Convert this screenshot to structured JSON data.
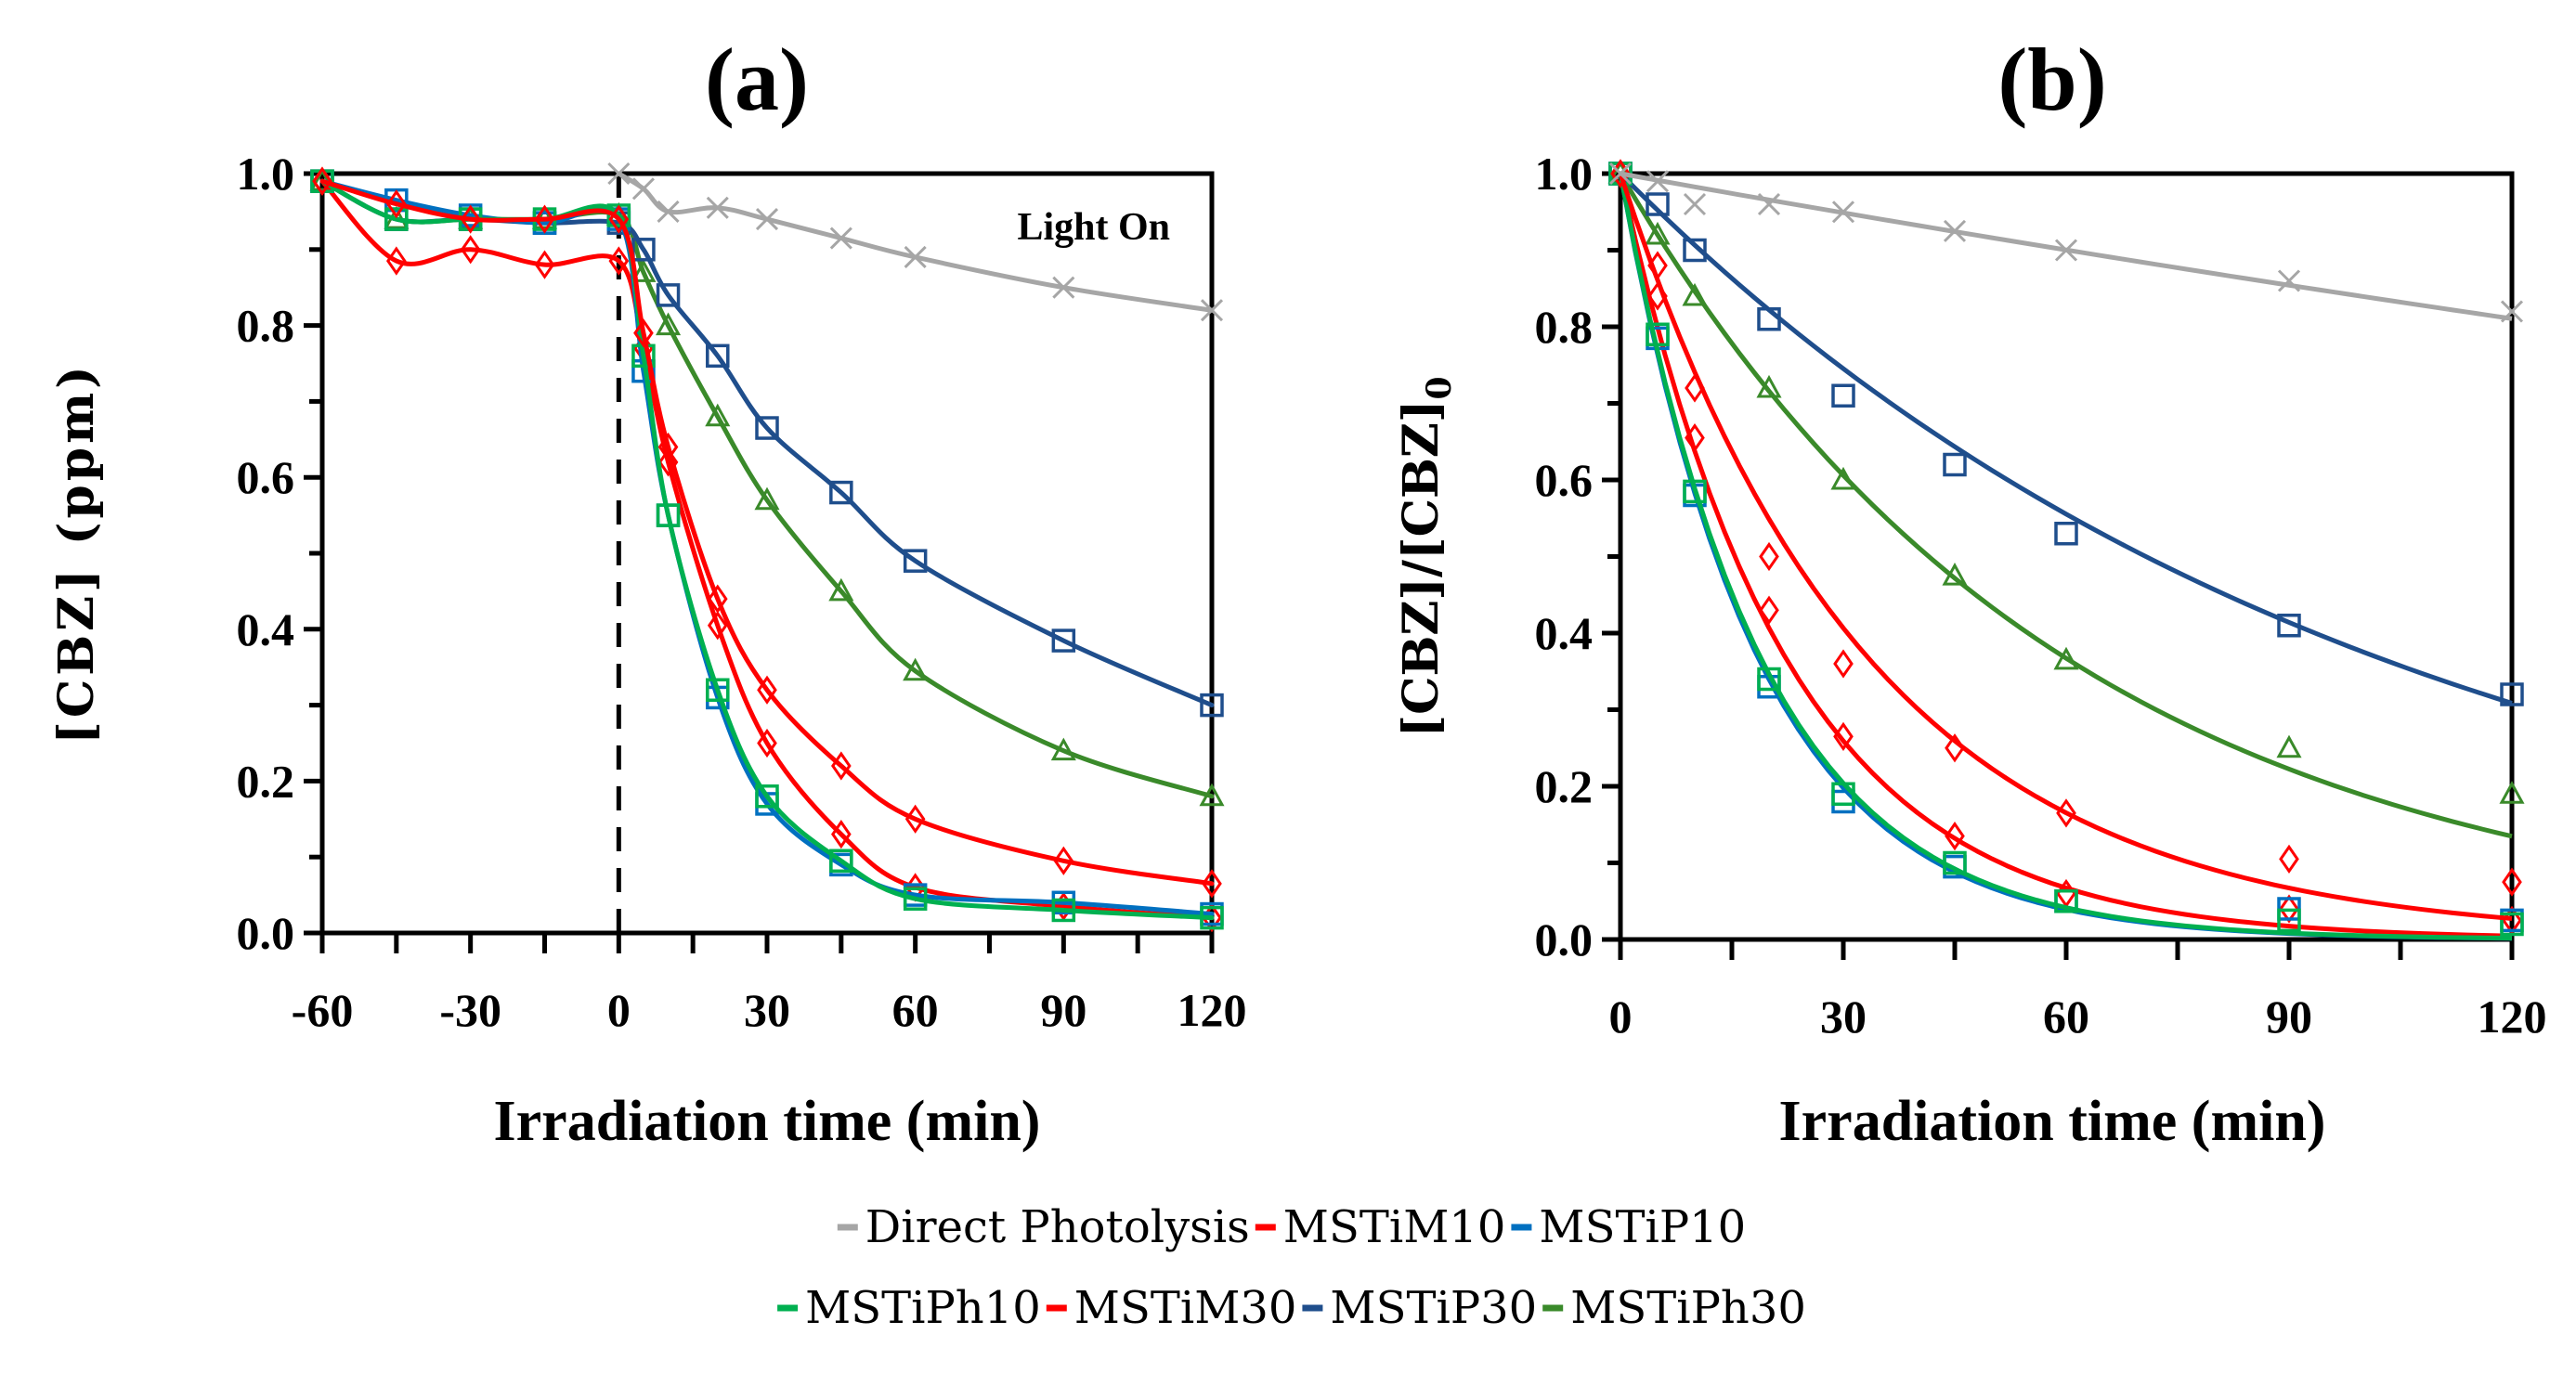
{
  "chart_data": [
    {
      "panel": "a",
      "type": "line",
      "title": "(a)",
      "xlabel": "Irradiation time (min)",
      "ylabel": "[CBZ] (ppm)",
      "xlim": [
        -60,
        120
      ],
      "ylim": [
        0,
        1.0
      ],
      "xticks": [
        -60,
        -30,
        0,
        30,
        60,
        90,
        120
      ],
      "xtick_labels": [
        "-60",
        "-30",
        "0",
        "30",
        "60",
        "90",
        "120"
      ],
      "yticks": [
        0,
        0.2,
        0.4,
        0.6,
        0.8,
        1.0
      ],
      "ytick_labels": [
        "0.0",
        "0.2",
        "0.4",
        "0.6",
        "0.8",
        "1.0"
      ],
      "annotation": "Light On",
      "vline_x": 0,
      "grid": false,
      "series": [
        {
          "name": "Direct Photolysis",
          "color": "#a6a6a6",
          "marker": "x",
          "x": [
            0,
            5,
            10,
            20,
            30,
            45,
            60,
            90,
            120
          ],
          "y": [
            1.0,
            0.98,
            0.95,
            0.955,
            0.94,
            0.915,
            0.89,
            0.85,
            0.82
          ]
        },
        {
          "name": "MSTiM10",
          "color": "#ff0000",
          "marker": "diamond",
          "x": [
            -60,
            -45,
            -30,
            -15,
            0,
            5,
            10,
            20,
            30,
            45,
            60,
            90,
            120
          ],
          "y": [
            0.99,
            0.96,
            0.94,
            0.94,
            0.94,
            0.79,
            0.64,
            0.44,
            0.32,
            0.22,
            0.15,
            0.095,
            0.065
          ]
        },
        {
          "name": "MSTiP10",
          "color": "#0070c0",
          "marker": "square",
          "x": [
            -60,
            -45,
            -30,
            -15,
            0,
            5,
            10,
            20,
            30,
            45,
            60,
            90,
            120
          ],
          "y": [
            0.99,
            0.965,
            0.945,
            0.935,
            0.94,
            0.74,
            0.55,
            0.31,
            0.17,
            0.09,
            0.05,
            0.04,
            0.025
          ]
        },
        {
          "name": "MSTiPh10",
          "color": "#00b050",
          "marker": "square",
          "x": [
            -60,
            -45,
            -30,
            -15,
            0,
            5,
            10,
            20,
            30,
            45,
            60,
            90,
            120
          ],
          "y": [
            0.99,
            0.94,
            0.94,
            0.94,
            0.945,
            0.76,
            0.55,
            0.32,
            0.18,
            0.095,
            0.045,
            0.03,
            0.02
          ]
        },
        {
          "name": "MSTiM30",
          "color": "#ff0000",
          "marker": "diamond",
          "x": [
            -60,
            -45,
            -30,
            -15,
            0,
            5,
            10,
            20,
            30,
            45,
            60,
            90,
            120
          ],
          "y": [
            0.99,
            0.885,
            0.9,
            0.88,
            0.885,
            0.77,
            0.62,
            0.405,
            0.25,
            0.13,
            0.06,
            0.035,
            0.02
          ]
        },
        {
          "name": "MSTiP30",
          "color": "#1f4e8c",
          "marker": "square",
          "x": [
            -60,
            -45,
            -30,
            -15,
            0,
            5,
            10,
            20,
            30,
            45,
            60,
            90,
            120
          ],
          "y": [
            0.99,
            0.94,
            0.94,
            0.935,
            0.935,
            0.9,
            0.84,
            0.76,
            0.665,
            0.58,
            0.49,
            0.385,
            0.3
          ]
        },
        {
          "name": "MSTiPh30",
          "color": "#3a8a2a",
          "marker": "triangle",
          "x": [
            -60,
            -45,
            -30,
            -15,
            0,
            5,
            10,
            20,
            30,
            45,
            60,
            90,
            120
          ],
          "y": [
            0.99,
            0.94,
            0.94,
            0.94,
            0.945,
            0.87,
            0.8,
            0.68,
            0.57,
            0.45,
            0.345,
            0.24,
            0.18
          ]
        }
      ]
    },
    {
      "panel": "b",
      "type": "scatter",
      "title": "(b)",
      "xlabel": "Irradiation time (min)",
      "ylabel": "[CBZ]/[CBZ]",
      "ylabel_sub": "0",
      "xlim": [
        0,
        120
      ],
      "ylim": [
        0,
        1.0
      ],
      "xticks": [
        0,
        30,
        60,
        90,
        120
      ],
      "xtick_labels": [
        "0",
        "30",
        "60",
        "90",
        "120"
      ],
      "yticks": [
        0,
        0.2,
        0.4,
        0.6,
        0.8,
        1.0
      ],
      "ytick_labels": [
        "0.0",
        "0.2",
        "0.4",
        "0.6",
        "0.8",
        "1.0"
      ],
      "grid": false,
      "fit": "first-order exponential decay C/C0 = exp(-k t)",
      "series": [
        {
          "name": "Direct Photolysis",
          "color": "#a6a6a6",
          "marker": "x",
          "k": 0.00175,
          "x": [
            0,
            5,
            10,
            20,
            30,
            45,
            60,
            90,
            120
          ],
          "y": [
            1.0,
            0.99,
            0.96,
            0.96,
            0.95,
            0.925,
            0.9,
            0.86,
            0.82
          ]
        },
        {
          "name": "MSTiM10",
          "color": "#ff0000",
          "marker": "diamond",
          "k": 0.03,
          "x": [
            0,
            5,
            10,
            20,
            30,
            45,
            60,
            90,
            120
          ],
          "y": [
            1.0,
            0.88,
            0.72,
            0.5,
            0.36,
            0.25,
            0.165,
            0.105,
            0.075
          ]
        },
        {
          "name": "MSTiP10",
          "color": "#0070c0",
          "marker": "square",
          "k": 0.054,
          "x": [
            0,
            5,
            10,
            20,
            30,
            45,
            60,
            90,
            120
          ],
          "y": [
            1.0,
            0.785,
            0.58,
            0.33,
            0.18,
            0.095,
            0.05,
            0.04,
            0.025
          ]
        },
        {
          "name": "MSTiPh10",
          "color": "#00b050",
          "marker": "square",
          "k": 0.053,
          "x": [
            0,
            5,
            10,
            20,
            30,
            45,
            60,
            90,
            120
          ],
          "y": [
            1.0,
            0.79,
            0.585,
            0.34,
            0.19,
            0.1,
            0.05,
            0.025,
            0.02
          ]
        },
        {
          "name": "MSTiM30",
          "color": "#ff0000",
          "marker": "diamond",
          "k": 0.045,
          "x": [
            0,
            5,
            10,
            20,
            30,
            45,
            60,
            90,
            120
          ],
          "y": [
            1.0,
            0.84,
            0.655,
            0.43,
            0.265,
            0.135,
            0.06,
            0.04,
            0.025
          ]
        },
        {
          "name": "MSTiP30",
          "color": "#1f4e8c",
          "marker": "square",
          "k": 0.0098,
          "x": [
            0,
            5,
            10,
            20,
            30,
            45,
            60,
            90,
            120
          ],
          "y": [
            1.0,
            0.96,
            0.9,
            0.81,
            0.71,
            0.62,
            0.53,
            0.41,
            0.32
          ]
        },
        {
          "name": "MSTiPh30",
          "color": "#3a8a2a",
          "marker": "triangle",
          "k": 0.0167,
          "x": [
            0,
            5,
            10,
            20,
            30,
            45,
            60,
            90,
            120
          ],
          "y": [
            1.0,
            0.92,
            0.84,
            0.72,
            0.6,
            0.475,
            0.365,
            0.25,
            0.19
          ]
        }
      ]
    }
  ],
  "legend": {
    "placement": "bottom-center",
    "rows": [
      [
        {
          "name": "Direct Photolysis",
          "color": "#a6a6a6"
        },
        {
          "name": "MSTiM10",
          "color": "#ff0000"
        },
        {
          "name": "MSTiP10",
          "color": "#0070c0"
        }
      ],
      [
        {
          "name": "MSTiPh10",
          "color": "#00b050"
        },
        {
          "name": "MSTiM30",
          "color": "#ff0000"
        },
        {
          "name": "MSTiP30",
          "color": "#1f4e8c"
        },
        {
          "name": "MSTiPh30",
          "color": "#3a8a2a"
        }
      ]
    ]
  }
}
